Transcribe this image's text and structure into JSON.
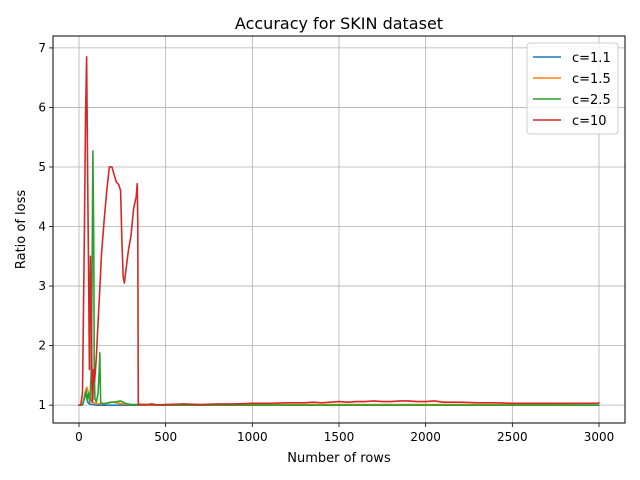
{
  "chart_data": {
    "type": "line",
    "title": "Accuracy for SKIN dataset",
    "xlabel": "Number of rows",
    "ylabel": "Ratio of loss",
    "xlim": [
      -150,
      3150
    ],
    "ylim": [
      0.7,
      7.2
    ],
    "xticks": [
      0,
      500,
      1000,
      1500,
      2000,
      2500,
      3000
    ],
    "yticks": [
      1,
      2,
      3,
      4,
      5,
      6,
      7
    ],
    "grid": true,
    "legend_position": "top-right",
    "series": [
      {
        "name": "c=1.1",
        "color": "#1f77b4",
        "points": [
          [
            0,
            1.0
          ],
          [
            20,
            1.0
          ],
          [
            40,
            1.2
          ],
          [
            50,
            1.05
          ],
          [
            60,
            1.02
          ],
          [
            80,
            1.01
          ],
          [
            100,
            1.0
          ],
          [
            200,
            1.0
          ],
          [
            400,
            1.0
          ],
          [
            1000,
            1.0
          ],
          [
            1500,
            1.0
          ],
          [
            2000,
            1.0
          ],
          [
            2500,
            1.0
          ],
          [
            3000,
            1.0
          ]
        ]
      },
      {
        "name": "c=1.5",
        "color": "#ff7f0e",
        "points": [
          [
            0,
            1.0
          ],
          [
            20,
            1.0
          ],
          [
            35,
            1.2
          ],
          [
            45,
            1.3
          ],
          [
            55,
            1.2
          ],
          [
            65,
            1.1
          ],
          [
            80,
            1.05
          ],
          [
            100,
            1.02
          ],
          [
            150,
            1.03
          ],
          [
            200,
            1.05
          ],
          [
            250,
            1.02
          ],
          [
            300,
            1.01
          ],
          [
            400,
            1.0
          ],
          [
            500,
            1.01
          ],
          [
            1000,
            1.01
          ],
          [
            1500,
            1.01
          ],
          [
            2000,
            1.01
          ],
          [
            2500,
            1.01
          ],
          [
            3000,
            1.0
          ]
        ]
      },
      {
        "name": "c=2.5",
        "color": "#2ca02c",
        "points": [
          [
            0,
            1.0
          ],
          [
            20,
            1.0
          ],
          [
            30,
            1.1
          ],
          [
            40,
            1.25
          ],
          [
            48,
            1.1
          ],
          [
            55,
            1.2
          ],
          [
            62,
            1.05
          ],
          [
            70,
            1.5
          ],
          [
            75,
            3.0
          ],
          [
            80,
            5.27
          ],
          [
            85,
            3.8
          ],
          [
            88,
            1.6
          ],
          [
            92,
            1.1
          ],
          [
            100,
            1.05
          ],
          [
            110,
            1.2
          ],
          [
            117,
            1.6
          ],
          [
            120,
            1.88
          ],
          [
            125,
            1.05
          ],
          [
            140,
            1.02
          ],
          [
            160,
            1.03
          ],
          [
            180,
            1.05
          ],
          [
            200,
            1.05
          ],
          [
            220,
            1.06
          ],
          [
            240,
            1.07
          ],
          [
            260,
            1.04
          ],
          [
            280,
            1.02
          ],
          [
            300,
            1.01
          ],
          [
            400,
            1.01
          ],
          [
            500,
            1.0
          ],
          [
            700,
            1.0
          ],
          [
            1000,
            1.0
          ],
          [
            1500,
            1.0
          ],
          [
            2000,
            1.0
          ],
          [
            2500,
            1.0
          ],
          [
            3000,
            1.0
          ]
        ]
      },
      {
        "name": "c=10",
        "color": "#d62728",
        "points": [
          [
            0,
            1.0
          ],
          [
            10,
            1.0
          ],
          [
            20,
            1.2
          ],
          [
            30,
            3.6
          ],
          [
            38,
            5.9
          ],
          [
            44,
            6.85
          ],
          [
            50,
            4.8
          ],
          [
            56,
            3.0
          ],
          [
            60,
            1.6
          ],
          [
            66,
            3.5
          ],
          [
            72,
            2.3
          ],
          [
            76,
            1.05
          ],
          [
            80,
            1.1
          ],
          [
            84,
            1.6
          ],
          [
            90,
            1.4
          ],
          [
            100,
            1.8
          ],
          [
            110,
            2.4
          ],
          [
            120,
            2.95
          ],
          [
            130,
            3.55
          ],
          [
            145,
            4.1
          ],
          [
            160,
            4.6
          ],
          [
            175,
            5.0
          ],
          [
            190,
            5.0
          ],
          [
            200,
            4.9
          ],
          [
            215,
            4.75
          ],
          [
            230,
            4.7
          ],
          [
            240,
            4.6
          ],
          [
            248,
            3.7
          ],
          [
            255,
            3.15
          ],
          [
            262,
            3.05
          ],
          [
            270,
            3.25
          ],
          [
            285,
            3.6
          ],
          [
            300,
            3.85
          ],
          [
            315,
            4.3
          ],
          [
            330,
            4.5
          ],
          [
            336,
            4.72
          ],
          [
            339,
            4.1
          ],
          [
            342,
            1.02
          ],
          [
            360,
            1.01
          ],
          [
            400,
            1.01
          ],
          [
            420,
            1.02
          ],
          [
            460,
            1.0
          ],
          [
            500,
            1.01
          ],
          [
            600,
            1.02
          ],
          [
            700,
            1.01
          ],
          [
            800,
            1.02
          ],
          [
            900,
            1.02
          ],
          [
            1000,
            1.03
          ],
          [
            1100,
            1.03
          ],
          [
            1200,
            1.04
          ],
          [
            1300,
            1.04
          ],
          [
            1350,
            1.05
          ],
          [
            1400,
            1.04
          ],
          [
            1450,
            1.05
          ],
          [
            1500,
            1.06
          ],
          [
            1550,
            1.05
          ],
          [
            1600,
            1.06
          ],
          [
            1650,
            1.06
          ],
          [
            1700,
            1.07
          ],
          [
            1750,
            1.06
          ],
          [
            1800,
            1.06
          ],
          [
            1850,
            1.07
          ],
          [
            1900,
            1.07
          ],
          [
            1950,
            1.06
          ],
          [
            2000,
            1.06
          ],
          [
            2050,
            1.07
          ],
          [
            2100,
            1.05
          ],
          [
            2200,
            1.05
          ],
          [
            2300,
            1.04
          ],
          [
            2400,
            1.04
          ],
          [
            2500,
            1.03
          ],
          [
            2600,
            1.03
          ],
          [
            2700,
            1.03
          ],
          [
            2800,
            1.03
          ],
          [
            2900,
            1.03
          ],
          [
            2990,
            1.03
          ],
          [
            3000,
            1.04
          ]
        ]
      }
    ]
  }
}
